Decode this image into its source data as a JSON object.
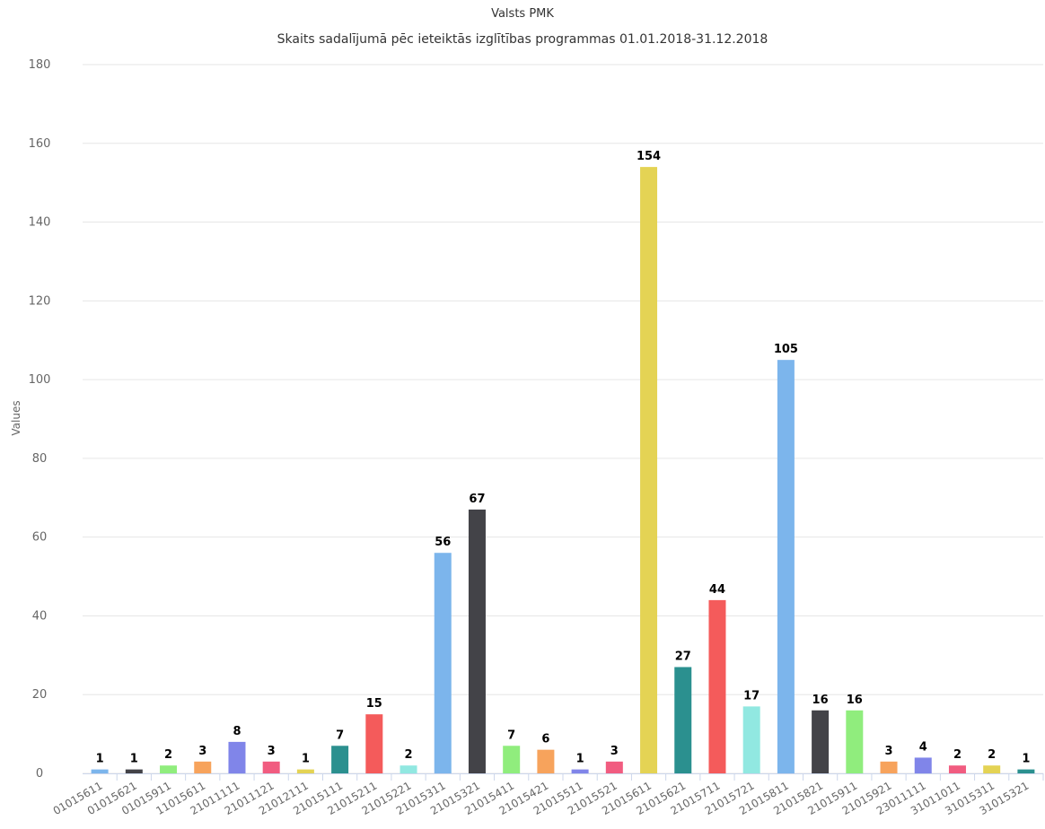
{
  "chart_data": {
    "type": "bar",
    "title": "Valsts PMK",
    "subtitle": "Skaits sadalījumā pēc ieteiktās izglītības programmas 01.01.2018-31.12.2018",
    "xlabel": "",
    "ylabel": "Values",
    "ylim": [
      0,
      180
    ],
    "yticks": [
      0,
      20,
      40,
      60,
      80,
      100,
      120,
      140,
      160,
      180
    ],
    "grid": true,
    "legend": "none",
    "categories": [
      "01015611",
      "01015621",
      "01015911",
      "11015611",
      "21011111",
      "21011121",
      "21012111",
      "21015111",
      "21015211",
      "21015221",
      "21015311",
      "21015321",
      "21015411",
      "21015421",
      "21015511",
      "21015521",
      "21015611",
      "21015621",
      "21015711",
      "21015721",
      "21015811",
      "21015821",
      "21015911",
      "21015921",
      "23011111",
      "31011011",
      "31015311",
      "31015321"
    ],
    "values": [
      1,
      1,
      2,
      3,
      8,
      3,
      1,
      7,
      15,
      2,
      56,
      67,
      7,
      6,
      1,
      3,
      154,
      27,
      44,
      17,
      105,
      16,
      16,
      3,
      4,
      2,
      2,
      1
    ],
    "colors": [
      "#7cb5ec",
      "#434348",
      "#90ed7d",
      "#f7a35c",
      "#8085e9",
      "#f15c80",
      "#e4d354",
      "#2b908f",
      "#f45b5b",
      "#91e8e1"
    ]
  }
}
